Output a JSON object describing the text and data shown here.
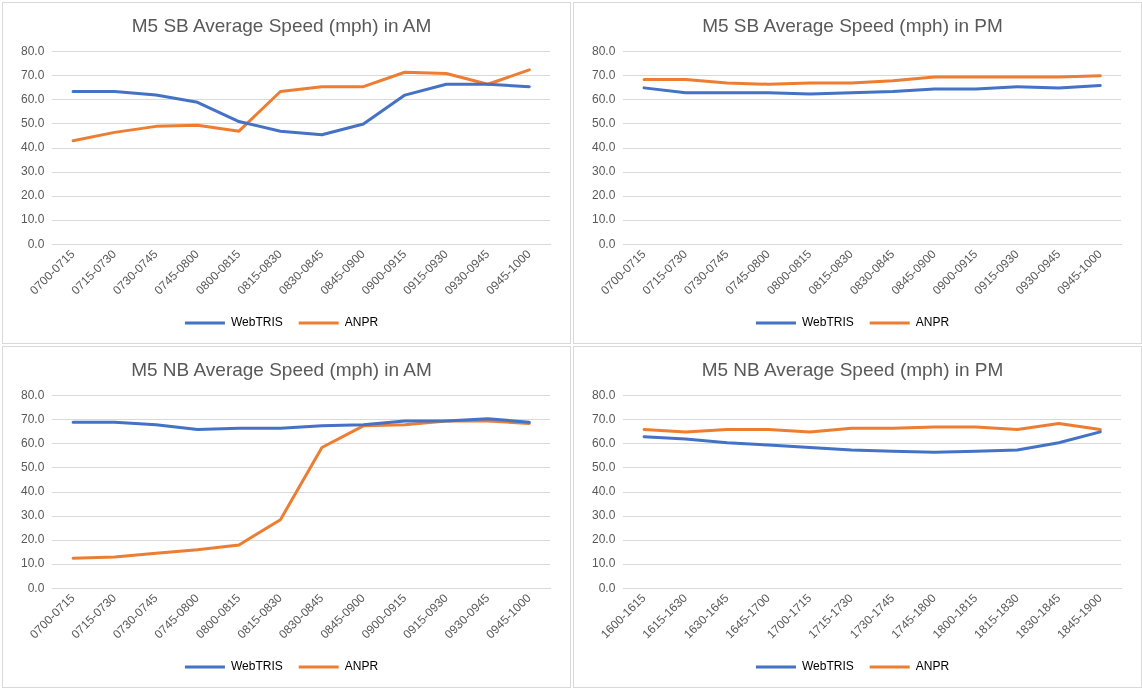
{
  "chart_data": [
    {
      "type": "line",
      "title": "M5 SB Average Speed (mph) in AM",
      "categories": [
        "0700-0715",
        "0715-0730",
        "0730-0745",
        "0745-0800",
        "0800-0815",
        "0815-0830",
        "0830-0845",
        "0845-0900",
        "0900-0915",
        "0915-0930",
        "0930-0945",
        "0945-1000"
      ],
      "series": [
        {
          "name": "WebTRIS",
          "color": "#4472c4",
          "values": [
            63.5,
            63.5,
            62,
            59,
            51,
            47,
            45.5,
            50,
            62,
            66.5,
            66.5,
            65.5
          ]
        },
        {
          "name": "ANPR",
          "color": "#ed7d31",
          "values": [
            43,
            46.5,
            49,
            49.5,
            47,
            63.5,
            65.5,
            65.5,
            71.5,
            71,
            66.5,
            72.5
          ]
        }
      ],
      "ylim": [
        0,
        80
      ],
      "yticks": [
        {
          "value": 0,
          "label": "0.0"
        },
        {
          "value": 10,
          "label": "10.0"
        },
        {
          "value": 20,
          "label": "20.0"
        },
        {
          "value": 30,
          "label": "30.0"
        },
        {
          "value": 40,
          "label": "40.0"
        },
        {
          "value": 50,
          "label": "50.0"
        },
        {
          "value": 60,
          "label": "60.0"
        },
        {
          "value": 70,
          "label": "70.0"
        },
        {
          "value": 80,
          "label": "80.0"
        }
      ],
      "grid": "y",
      "legend": "bottom",
      "marker": "none",
      "line_style": "solid"
    },
    {
      "type": "line",
      "title": "M5 SB Average Speed (mph) in PM",
      "categories": [
        "0700-0715",
        "0715-0730",
        "0730-0745",
        "0745-0800",
        "0800-0815",
        "0815-0830",
        "0830-0845",
        "0845-0900",
        "0900-0915",
        "0915-0930",
        "0930-0945",
        "0945-1000"
      ],
      "series": [
        {
          "name": "WebTRIS",
          "color": "#4472c4",
          "values": [
            65,
            63,
            63,
            63,
            62.5,
            63,
            63.5,
            64.5,
            64.5,
            65.5,
            65,
            66
          ]
        },
        {
          "name": "ANPR",
          "color": "#ed7d31",
          "values": [
            68.5,
            68.5,
            67,
            66.5,
            67,
            67,
            68,
            69.5,
            69.5,
            69.5,
            69.5,
            70
          ]
        }
      ],
      "ylim": [
        0,
        80
      ],
      "yticks": [
        {
          "value": 0,
          "label": "0.0"
        },
        {
          "value": 10,
          "label": "10.0"
        },
        {
          "value": 20,
          "label": "20.0"
        },
        {
          "value": 30,
          "label": "30.0"
        },
        {
          "value": 40,
          "label": "40.0"
        },
        {
          "value": 50,
          "label": "50.0"
        },
        {
          "value": 60,
          "label": "60.0"
        },
        {
          "value": 70,
          "label": "70.0"
        },
        {
          "value": 80,
          "label": "80.0"
        }
      ],
      "grid": "y",
      "legend": "bottom",
      "marker": "none",
      "line_style": "solid"
    },
    {
      "type": "line",
      "title": "M5 NB Average Speed (mph) in AM",
      "categories": [
        "0700-0715",
        "0715-0730",
        "0730-0745",
        "0745-0800",
        "0800-0815",
        "0815-0830",
        "0830-0845",
        "0845-0900",
        "0900-0915",
        "0915-0930",
        "0930-0945",
        "0945-1000"
      ],
      "series": [
        {
          "name": "WebTRIS",
          "color": "#4472c4",
          "values": [
            69,
            69,
            68,
            66,
            66.5,
            66.5,
            67.5,
            68,
            69.5,
            69.5,
            70.5,
            69
          ]
        },
        {
          "name": "ANPR",
          "color": "#ed7d31",
          "values": [
            12.5,
            13,
            14.5,
            16,
            18,
            28.5,
            58.5,
            67.5,
            68,
            69.5,
            69.5,
            68.5
          ]
        }
      ],
      "ylim": [
        0,
        80
      ],
      "yticks": [
        {
          "value": 0,
          "label": "0.0"
        },
        {
          "value": 10,
          "label": "10.0"
        },
        {
          "value": 20,
          "label": "20.0"
        },
        {
          "value": 30,
          "label": "30.0"
        },
        {
          "value": 40,
          "label": "40.0"
        },
        {
          "value": 50,
          "label": "50.0"
        },
        {
          "value": 60,
          "label": "60.0"
        },
        {
          "value": 70,
          "label": "70.0"
        },
        {
          "value": 80,
          "label": "80.0"
        }
      ],
      "grid": "y",
      "legend": "bottom",
      "marker": "none",
      "line_style": "solid"
    },
    {
      "type": "line",
      "title": "M5 NB Average Speed (mph) in PM",
      "categories": [
        "1600-1615",
        "1615-1630",
        "1630-1645",
        "1645-1700",
        "1700-1715",
        "1715-1730",
        "1730-1745",
        "1745-1800",
        "1800-1815",
        "1815-1830",
        "1830-1845",
        "1845-1900"
      ],
      "series": [
        {
          "name": "WebTRIS",
          "color": "#4472c4",
          "values": [
            63,
            62,
            60.5,
            59.5,
            58.5,
            57.5,
            57,
            56.5,
            57,
            57.5,
            60.5,
            65
          ]
        },
        {
          "name": "ANPR",
          "color": "#ed7d31",
          "values": [
            66,
            65,
            66,
            66,
            65,
            66.5,
            66.5,
            67,
            67,
            66,
            68.5,
            66
          ]
        }
      ],
      "ylim": [
        0,
        80
      ],
      "yticks": [
        {
          "value": 0,
          "label": "0.0"
        },
        {
          "value": 10,
          "label": "10.0"
        },
        {
          "value": 20,
          "label": "20.0"
        },
        {
          "value": 30,
          "label": "30.0"
        },
        {
          "value": 40,
          "label": "40.0"
        },
        {
          "value": 50,
          "label": "50.0"
        },
        {
          "value": 60,
          "label": "60.0"
        },
        {
          "value": 70,
          "label": "70.0"
        },
        {
          "value": 80,
          "label": "80.0"
        }
      ],
      "grid": "y",
      "legend": "bottom",
      "marker": "none",
      "line_style": "solid"
    }
  ]
}
